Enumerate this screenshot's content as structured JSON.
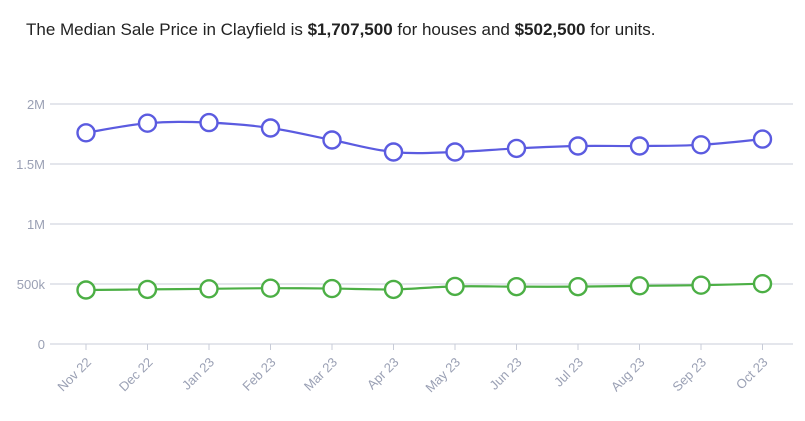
{
  "headline": {
    "prefix": "The Median Sale Price in Clayfield is ",
    "house_price": "$1,707,500",
    "middle": " for houses and ",
    "unit_price": "$502,500",
    "suffix": " for units."
  },
  "colors": {
    "houses": "#5b5be0",
    "units": "#4caf45",
    "grid": "#c8ccd8",
    "axis_text": "#9aa0b4"
  },
  "chart_data": {
    "type": "line",
    "title": "The Median Sale Price in Clayfield is $1,707,500 for houses and $502,500 for units.",
    "categories": [
      "Nov 22",
      "Dec 22",
      "Jan 23",
      "Feb 23",
      "Mar 23",
      "Apr 23",
      "May 23",
      "Jun 23",
      "Jul 23",
      "Aug 23",
      "Sep 23",
      "Oct 23"
    ],
    "series": [
      {
        "key": "houses",
        "values": [
          1760000,
          1840000,
          1845000,
          1800000,
          1700000,
          1600000,
          1600000,
          1630000,
          1650000,
          1650000,
          1660000,
          1707500
        ]
      },
      {
        "key": "units",
        "values": [
          450000,
          455000,
          460000,
          465000,
          462000,
          455000,
          480000,
          478000,
          478000,
          485000,
          490000,
          502500
        ]
      }
    ],
    "yticks": [
      {
        "value": 0,
        "label": "0"
      },
      {
        "value": 500000,
        "label": "500k"
      },
      {
        "value": 1000000,
        "label": "1M"
      },
      {
        "value": 1500000,
        "label": "1.5M"
      },
      {
        "value": 2000000,
        "label": "2M"
      }
    ],
    "ylim": [
      0,
      2000000
    ],
    "grid": true,
    "legend": "none"
  }
}
